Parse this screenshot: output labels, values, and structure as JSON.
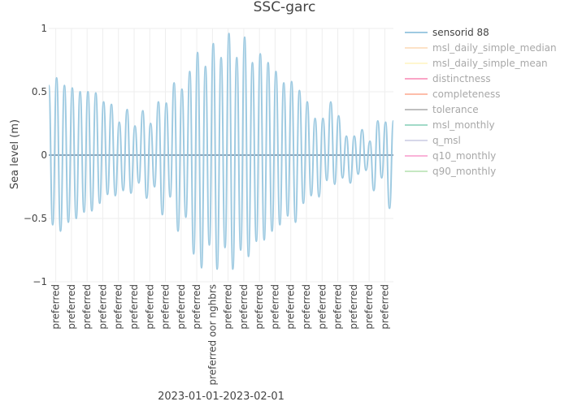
{
  "chart_data": {
    "type": "line",
    "title": "SSC-garc",
    "xlabel": "2023-01-01-2023-02-01",
    "ylabel": "Sea level (m)",
    "ylim": [
      -1,
      1
    ],
    "yticks": [
      {
        "value": 1,
        "label": "1"
      },
      {
        "value": 0.5,
        "label": "0.5"
      },
      {
        "value": 0,
        "label": "0"
      },
      {
        "value": -0.5,
        "label": "−0.5"
      },
      {
        "value": -1,
        "label": "−1"
      }
    ],
    "xlim": [
      0,
      22
    ],
    "grid": true,
    "legend_position": "top-right",
    "x_tick_labels": [
      "preferred",
      "preferred",
      "preferred",
      "preferred",
      "preferred",
      "preferred",
      "preferred",
      "preferred",
      "preferred",
      "preferred",
      "preferred oor nghbrs",
      "preferred",
      "preferred",
      "preferred",
      "preferred",
      "preferred",
      "preferred",
      "preferred",
      "preferred",
      "preferred",
      "preferred",
      "preferred"
    ],
    "series": [
      {
        "name": "sensorid 88",
        "color": "#9ecae1",
        "visible": true,
        "x": [
          0,
          0.25,
          0.5,
          0.75,
          1,
          1.25,
          1.5,
          1.75,
          2,
          2.25,
          2.5,
          2.75,
          3,
          3.25,
          3.5,
          3.75,
          4,
          4.25,
          4.5,
          4.75,
          5,
          5.25,
          5.5,
          5.75,
          6,
          6.25,
          6.5,
          6.75,
          7,
          7.25,
          7.5,
          7.75,
          8,
          8.25,
          8.5,
          8.75,
          9,
          9.25,
          9.5,
          9.75,
          10,
          10.25,
          10.5,
          10.75,
          11,
          11.25,
          11.5,
          11.75,
          12,
          12.25,
          12.5,
          12.75,
          13,
          13.25,
          13.5,
          13.75,
          14,
          14.25,
          14.5,
          14.75,
          15,
          15.25,
          15.5,
          15.75,
          16,
          16.25,
          16.5,
          16.75,
          17,
          17.25,
          17.5,
          17.75,
          18,
          18.25,
          18.5,
          18.75,
          19,
          19.25,
          19.5,
          19.75,
          20,
          20.25,
          20.5,
          20.75,
          21,
          21.25,
          21.5,
          21.75,
          22
        ],
        "values": [
          0.55,
          -0.55,
          0.61,
          -0.6,
          0.55,
          -0.53,
          0.53,
          -0.5,
          0.5,
          -0.45,
          0.5,
          -0.44,
          0.49,
          -0.38,
          0.42,
          -0.31,
          0.4,
          -0.32,
          0.26,
          -0.28,
          0.36,
          -0.3,
          0.23,
          -0.22,
          0.35,
          -0.34,
          0.25,
          -0.25,
          0.42,
          -0.47,
          0.41,
          -0.33,
          0.57,
          -0.6,
          0.52,
          -0.49,
          0.66,
          -0.78,
          0.81,
          -0.89,
          0.7,
          -0.71,
          0.88,
          -0.9,
          0.77,
          -0.73,
          0.96,
          -0.9,
          0.77,
          -0.75,
          0.93,
          -0.8,
          0.73,
          -0.68,
          0.8,
          -0.67,
          0.73,
          -0.6,
          0.66,
          -0.55,
          0.57,
          -0.48,
          0.58,
          -0.53,
          0.51,
          -0.38,
          0.42,
          -0.32,
          0.29,
          -0.33,
          0.29,
          -0.2,
          0.42,
          -0.23,
          0.31,
          -0.18,
          0.15,
          -0.22,
          0.15,
          -0.15,
          0.2,
          -0.12,
          0.11,
          -0.28,
          0.27,
          -0.18,
          0.26,
          -0.42,
          0.27
        ]
      },
      {
        "name": "msl_daily_simple_median",
        "color": "#fdd0a2",
        "visible": false
      },
      {
        "name": "msl_daily_simple_mean",
        "color": "#fff3b0",
        "visible": false
      },
      {
        "name": "distinctness",
        "color": "#f768a1",
        "visible": false
      },
      {
        "name": "completeness",
        "color": "#fc9272",
        "visible": false
      },
      {
        "name": "tolerance",
        "color": "#969696",
        "visible": false
      },
      {
        "name": "msl_monthly",
        "color": "#66c2a4",
        "visible": false
      },
      {
        "name": "q_msl",
        "color": "#bcbddc",
        "visible": false
      },
      {
        "name": "q10_monthly",
        "color": "#f781bf",
        "visible": false
      },
      {
        "name": "q90_monthly",
        "color": "#a1d99b",
        "visible": false
      }
    ],
    "baseline": {
      "value": 0,
      "color": "#8aa2b6"
    }
  }
}
